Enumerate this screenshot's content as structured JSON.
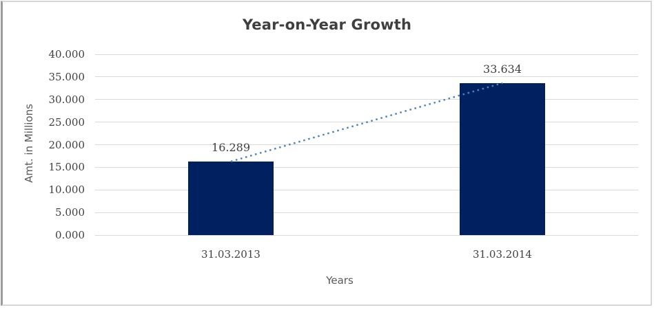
{
  "chart_data": {
    "type": "bar",
    "title": "Year-on-Year Growth",
    "xlabel": "Years",
    "ylabel": "Amt. in Millions",
    "categories": [
      "31.03.2013",
      "31.03.2014"
    ],
    "values": [
      16.289,
      33.634
    ],
    "data_labels": [
      "16.289",
      "33.634"
    ],
    "yticks": [
      "40.000",
      "35.000",
      "30.000",
      "25.000",
      "20.000",
      "15.000",
      "10.000",
      "5.000",
      "0.000"
    ],
    "ylim": [
      0,
      40
    ],
    "grid": true,
    "legend": "none",
    "bar_color": "#00205f",
    "gridline_color": "#d9d9d9",
    "trendline": {
      "type": "linear",
      "style": "dotted",
      "color": "#4f81bd"
    }
  }
}
